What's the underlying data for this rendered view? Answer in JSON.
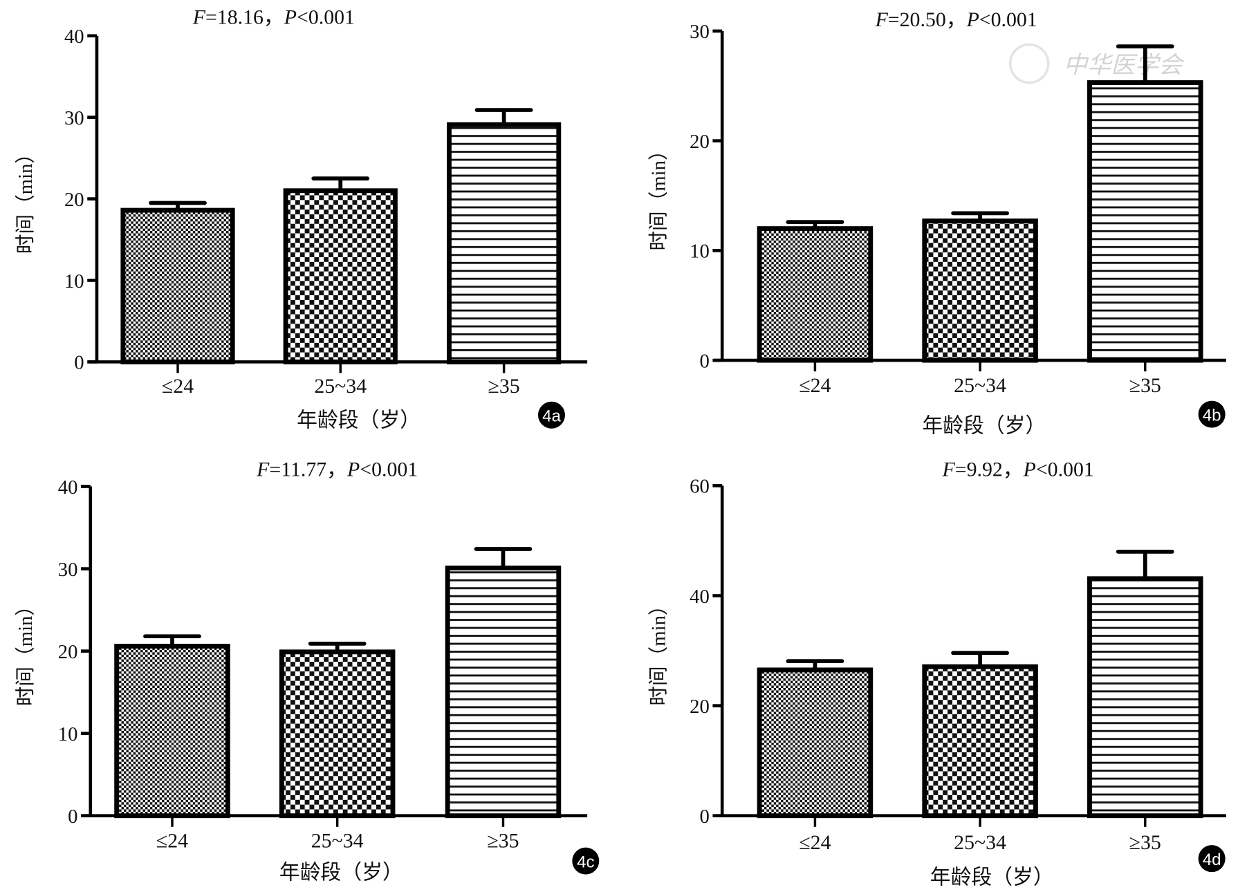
{
  "watermark": "中华医学会",
  "chart_data": [
    {
      "type": "bar",
      "panel_label": "4a",
      "title": {
        "f_symbol": "F",
        "f_value": "=18.16，",
        "p_symbol": "P",
        "p_value": "<0.001"
      },
      "ylabel": "时间（min）",
      "xlabel": "年龄段（岁）",
      "categories": [
        "≤24",
        "25~34",
        "≥35"
      ],
      "values": [
        18.6,
        21.0,
        29.1
      ],
      "error_upper": [
        19.5,
        22.5,
        30.9
      ],
      "ylim": [
        0,
        40
      ],
      "yticks": [
        "0",
        "10",
        "20",
        "30",
        "40"
      ],
      "patterns": [
        "fine-checker",
        "coarse-checker",
        "horizontal-stripes"
      ]
    },
    {
      "type": "bar",
      "panel_label": "4b",
      "title": {
        "f_symbol": "F",
        "f_value": "=20.50，",
        "p_symbol": "P",
        "p_value": "<0.001"
      },
      "ylabel": "时间（min）",
      "xlabel": "年龄段（岁）",
      "categories": [
        "≤24",
        "25~34",
        "≥35"
      ],
      "values": [
        12.0,
        12.7,
        25.3
      ],
      "error_upper": [
        12.6,
        13.4,
        28.6
      ],
      "ylim": [
        0,
        30
      ],
      "yticks": [
        "0",
        "10",
        "20",
        "30"
      ],
      "patterns": [
        "fine-checker",
        "coarse-checker",
        "horizontal-stripes"
      ]
    },
    {
      "type": "bar",
      "panel_label": "4c",
      "title": {
        "f_symbol": "F",
        "f_value": "=11.77，",
        "p_symbol": "P",
        "p_value": "<0.001"
      },
      "ylabel": "时间（min）",
      "xlabel": "年龄段（岁）",
      "categories": [
        "≤24",
        "25~34",
        "≥35"
      ],
      "values": [
        20.6,
        19.9,
        30.1
      ],
      "error_upper": [
        21.8,
        20.9,
        32.4
      ],
      "ylim": [
        0,
        40
      ],
      "yticks": [
        "0",
        "10",
        "20",
        "30",
        "40"
      ],
      "patterns": [
        "fine-checker",
        "coarse-checker",
        "horizontal-stripes"
      ]
    },
    {
      "type": "bar",
      "panel_label": "4d",
      "title": {
        "f_symbol": "F",
        "f_value": "=9.92，",
        "p_symbol": "P",
        "p_value": "<0.001"
      },
      "ylabel": "时间（min）",
      "xlabel": "年龄段（岁）",
      "categories": [
        "≤24",
        "25~34",
        "≥35"
      ],
      "values": [
        26.5,
        27.1,
        43.1
      ],
      "error_upper": [
        28.1,
        29.6,
        48.0
      ],
      "ylim": [
        0,
        60
      ],
      "yticks": [
        "0",
        "20",
        "40",
        "60"
      ],
      "patterns": [
        "fine-checker",
        "coarse-checker",
        "horizontal-stripes"
      ]
    }
  ]
}
